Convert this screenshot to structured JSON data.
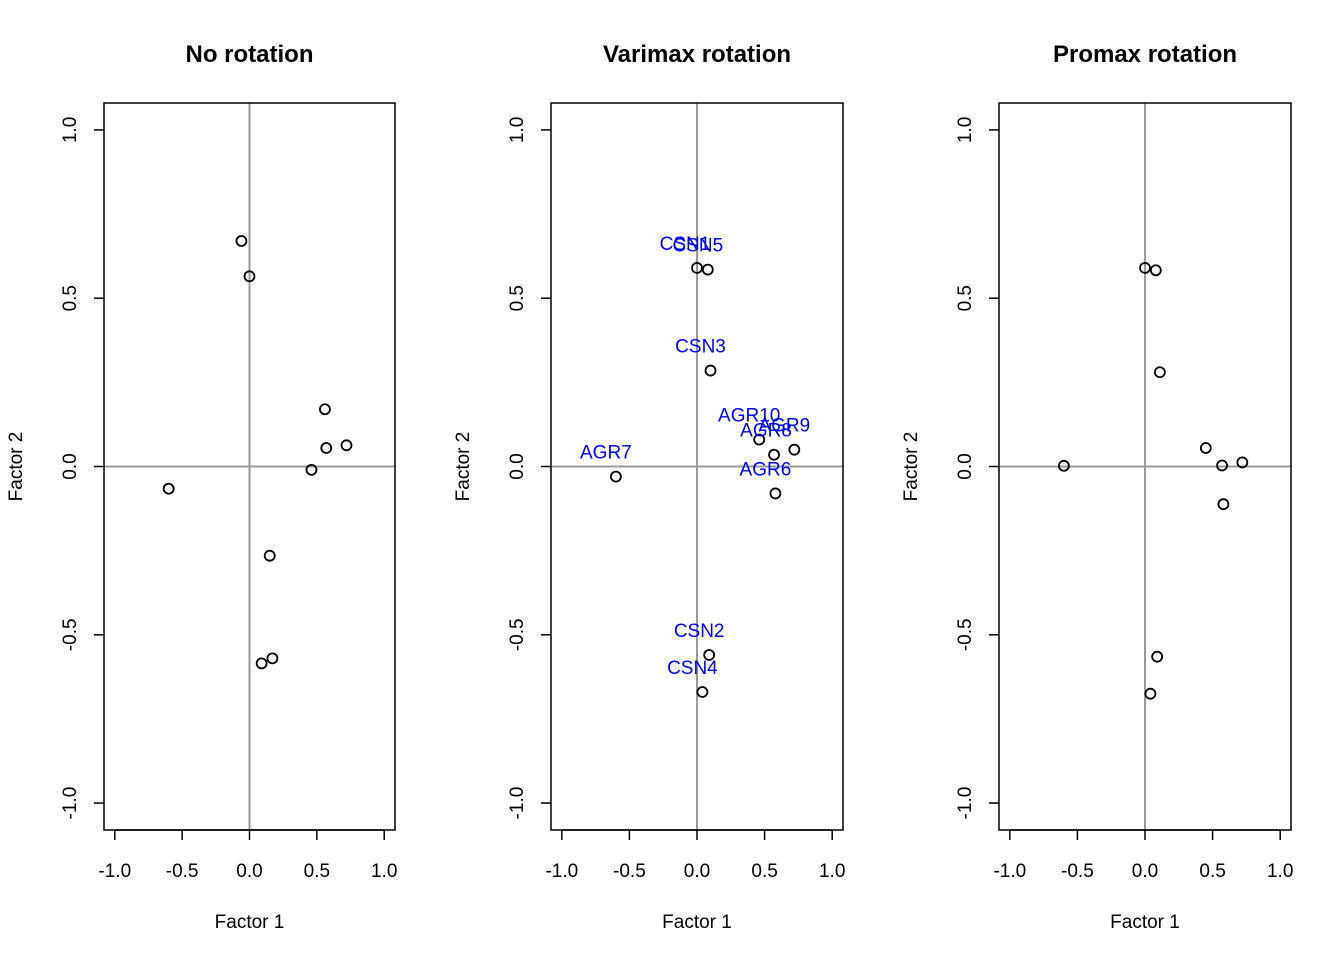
{
  "chart_data": [
    {
      "type": "scatter",
      "title": "No rotation",
      "xlabel": "Factor 1",
      "ylabel": "Factor 2",
      "xlim": [
        -1.0,
        1.0
      ],
      "ylim": [
        -1.0,
        1.0
      ],
      "xticks": [
        "-1.0",
        "-0.5",
        "0.0",
        "0.5",
        "1.0"
      ],
      "yticks": [
        "-1.0",
        "-0.5",
        "0.0",
        "0.5",
        "1.0"
      ],
      "reference_lines": {
        "x": 0,
        "y": 0,
        "color": "#999999"
      },
      "points": [
        {
          "x": -0.06,
          "y": 0.67
        },
        {
          "x": 0.0,
          "y": 0.565
        },
        {
          "x": 0.56,
          "y": 0.17
        },
        {
          "x": 0.57,
          "y": 0.055
        },
        {
          "x": 0.72,
          "y": 0.063
        },
        {
          "x": 0.46,
          "y": -0.01
        },
        {
          "x": -0.6,
          "y": -0.066
        },
        {
          "x": 0.15,
          "y": -0.265
        },
        {
          "x": 0.09,
          "y": -0.585
        },
        {
          "x": 0.17,
          "y": -0.57
        }
      ]
    },
    {
      "type": "scatter",
      "title": "Varimax rotation",
      "xlabel": "Factor 1",
      "ylabel": "Factor 2",
      "xlim": [
        -1.0,
        1.0
      ],
      "ylim": [
        -1.0,
        1.0
      ],
      "xticks": [
        "-1.0",
        "-0.5",
        "0.0",
        "0.5",
        "1.0"
      ],
      "yticks": [
        "-1.0",
        "-0.5",
        "0.0",
        "0.5",
        "1.0"
      ],
      "reference_lines": {
        "x": 0,
        "y": 0,
        "color": "#999999"
      },
      "label_color": "#0000ff",
      "points": [
        {
          "x": 0.0,
          "y": 0.59,
          "label": "CSN1"
        },
        {
          "x": 0.08,
          "y": 0.585,
          "label": "CSN5"
        },
        {
          "x": 0.1,
          "y": 0.285,
          "label": "CSN3"
        },
        {
          "x": 0.46,
          "y": 0.08,
          "label": "AGR10"
        },
        {
          "x": 0.72,
          "y": 0.05,
          "label": "AGR9"
        },
        {
          "x": 0.57,
          "y": 0.035,
          "label": "AGR8"
        },
        {
          "x": -0.6,
          "y": -0.03,
          "label": "AGR7"
        },
        {
          "x": 0.58,
          "y": -0.08,
          "label": "AGR6"
        },
        {
          "x": 0.09,
          "y": -0.56,
          "label": "CSN2"
        },
        {
          "x": 0.04,
          "y": -0.67,
          "label": "CSN4"
        }
      ]
    },
    {
      "type": "scatter",
      "title": "Promax rotation",
      "xlabel": "Factor 1",
      "ylabel": "Factor 2",
      "xlim": [
        -1.0,
        1.0
      ],
      "ylim": [
        -1.0,
        1.0
      ],
      "xticks": [
        "-1.0",
        "-0.5",
        "0.0",
        "0.5",
        "1.0"
      ],
      "yticks": [
        "-1.0",
        "-0.5",
        "0.0",
        "0.5",
        "1.0"
      ],
      "reference_lines": {
        "x": 0,
        "y": 0,
        "color": "#999999"
      },
      "points": [
        {
          "x": 0.0,
          "y": 0.59
        },
        {
          "x": 0.08,
          "y": 0.583
        },
        {
          "x": 0.11,
          "y": 0.28
        },
        {
          "x": 0.45,
          "y": 0.055
        },
        {
          "x": 0.72,
          "y": 0.012
        },
        {
          "x": 0.57,
          "y": 0.003
        },
        {
          "x": -0.6,
          "y": 0.002
        },
        {
          "x": 0.58,
          "y": -0.112
        },
        {
          "x": 0.09,
          "y": -0.565
        },
        {
          "x": 0.04,
          "y": -0.675
        }
      ]
    }
  ]
}
